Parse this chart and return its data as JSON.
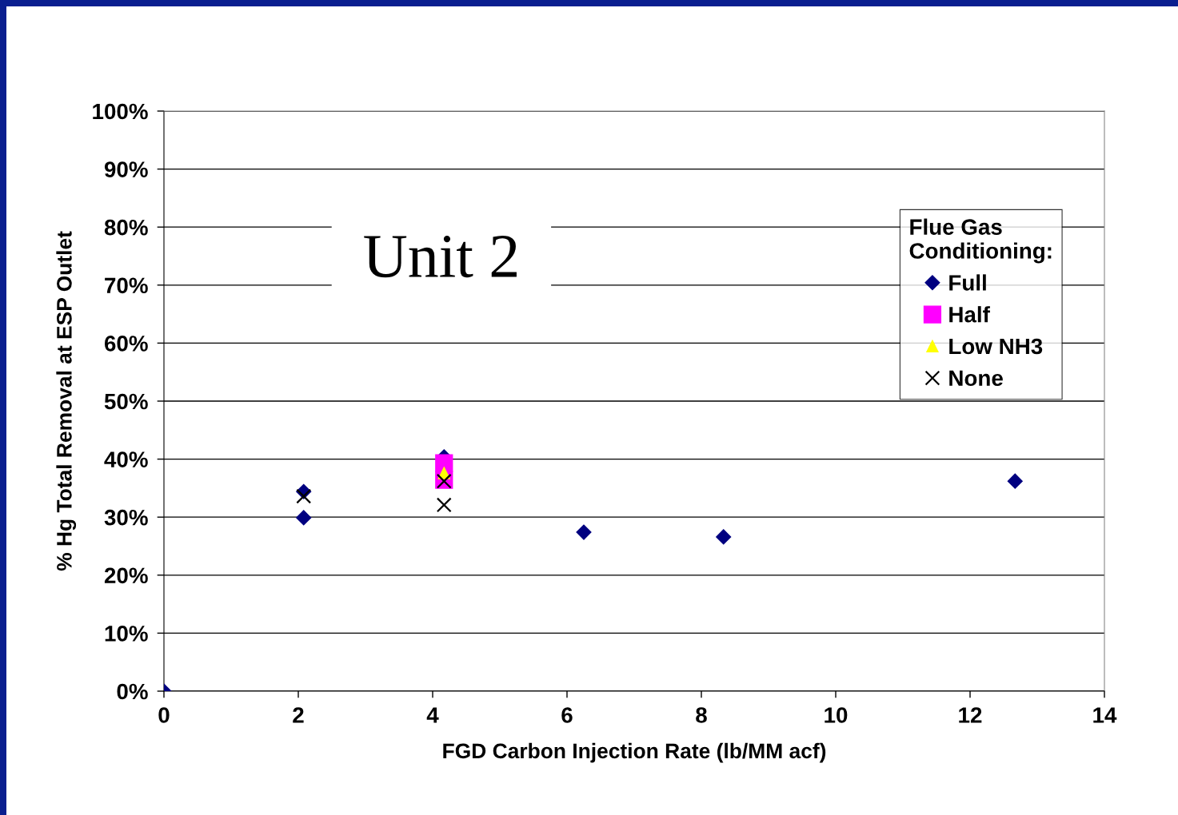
{
  "chart_data": {
    "type": "scatter",
    "xlabel": "FGD Carbon Injection Rate (lb/MM acf)",
    "ylabel": "% Hg Total Removal at ESP Outlet",
    "legend_title": "Flue Gas\nConditioning:",
    "annotations": [
      "Unit 2"
    ],
    "xlim": [
      0,
      14
    ],
    "xticks": [
      0,
      2,
      4,
      6,
      8,
      10,
      12,
      14
    ],
    "ylim": [
      0,
      100
    ],
    "yticks": [
      {
        "value": 0,
        "label": "0%"
      },
      {
        "value": 10,
        "label": "10%"
      },
      {
        "value": 20,
        "label": "20%"
      },
      {
        "value": 30,
        "label": "30%"
      },
      {
        "value": 40,
        "label": "40%"
      },
      {
        "value": 50,
        "label": "50%"
      },
      {
        "value": 60,
        "label": "60%"
      },
      {
        "value": 70,
        "label": "70%"
      },
      {
        "value": 80,
        "label": "80%"
      },
      {
        "value": 90,
        "label": "90%"
      },
      {
        "value": 100,
        "label": "100%"
      }
    ],
    "grid": "y",
    "legend": "top right",
    "series": [
      {
        "name": "Full",
        "color": "#000080",
        "marker": "diamond",
        "x": [
          0,
          2.08,
          2.08,
          4.17,
          6.25,
          8.33,
          12.67
        ],
        "values": [
          0,
          34.4,
          29.9,
          40.4,
          27.4,
          26.6,
          36.2
        ]
      },
      {
        "name": "Half",
        "color": "#ff00ff",
        "marker": "square",
        "x": [
          4.17,
          4.17
        ],
        "values": [
          39.3,
          36.4
        ]
      },
      {
        "name": "Low NH3",
        "color": "#ffff00",
        "marker": "triangle",
        "x": [
          4.17
        ],
        "values": [
          37.6
        ]
      },
      {
        "name": "None",
        "color": "#000000",
        "marker": "cross",
        "x": [
          2.08,
          4.17,
          4.17
        ],
        "values": [
          33.6,
          36.2,
          32.1
        ]
      }
    ]
  }
}
